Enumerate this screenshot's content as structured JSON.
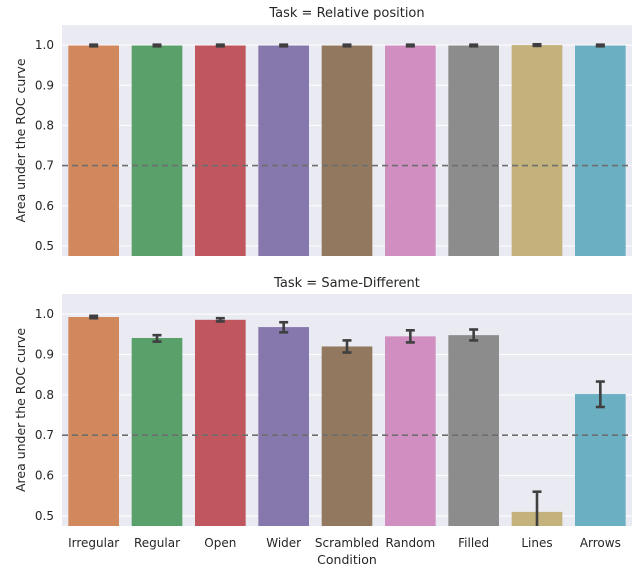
{
  "chart_data": [
    {
      "type": "bar",
      "title": "Task = Relative position",
      "categories": [
        "Irregular",
        "Regular",
        "Open",
        "Wider",
        "Scrambled",
        "Random",
        "Filled",
        "Lines",
        "Arrows"
      ],
      "values": [
        0.999,
        0.999,
        0.999,
        0.999,
        0.999,
        0.999,
        0.999,
        1.0,
        0.999
      ],
      "error_low": [
        0.997,
        0.997,
        0.997,
        0.997,
        0.997,
        0.997,
        0.997,
        0.998,
        0.997
      ],
      "error_high": [
        1.001,
        1.001,
        1.001,
        1.001,
        1.001,
        1.001,
        1.001,
        1.002,
        1.001
      ],
      "xlabel": "",
      "ylabel": "Area under the ROC curve",
      "ylim": [
        0.475,
        1.05
      ],
      "yticks": [
        0.5,
        0.6,
        0.7,
        0.8,
        0.9,
        1.0
      ],
      "reference_line": 0.7,
      "grid": true
    },
    {
      "type": "bar",
      "title": "Task = Same-Different",
      "categories": [
        "Irregular",
        "Regular",
        "Open",
        "Wider",
        "Scrambled",
        "Random",
        "Filled",
        "Lines",
        "Arrows"
      ],
      "values": [
        0.993,
        0.941,
        0.986,
        0.968,
        0.92,
        0.945,
        0.948,
        0.51,
        0.802
      ],
      "error_low": [
        0.99,
        0.932,
        0.982,
        0.955,
        0.905,
        0.93,
        0.935,
        0.46,
        0.77
      ],
      "error_high": [
        0.996,
        0.948,
        0.99,
        0.98,
        0.935,
        0.96,
        0.962,
        0.56,
        0.833
      ],
      "xlabel": "Condition",
      "ylabel": "Area under the ROC curve",
      "ylim": [
        0.475,
        1.05
      ],
      "yticks": [
        0.5,
        0.6,
        0.7,
        0.8,
        0.9,
        1.0
      ],
      "reference_line": 0.7,
      "grid": true
    }
  ],
  "colors": {
    "bars": [
      "#d1885c",
      "#59a06a",
      "#c0575e",
      "#8677ad",
      "#937860",
      "#d08fc0",
      "#8c8c8c",
      "#c4b27c",
      "#6bafc2"
    ],
    "panel_bg": "#eaeaf2",
    "grid": "#ffffff",
    "error_bar": "#3f3f3f",
    "reference_line": "#6e6e6e"
  }
}
